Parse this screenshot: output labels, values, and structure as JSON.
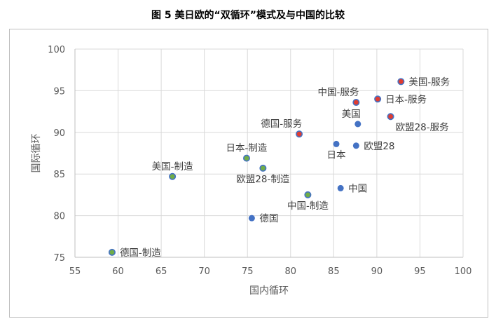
{
  "chart_data": {
    "type": "scatter",
    "title": "图 5 美日欧的“双循环”模式及与中国的比较",
    "xlabel": "国内循环",
    "ylabel": "国际循环",
    "xlim": [
      55,
      100
    ],
    "ylim": [
      75,
      100
    ],
    "xticks": [
      55,
      60,
      65,
      70,
      75,
      80,
      85,
      90,
      95,
      100
    ],
    "yticks": [
      75,
      80,
      85,
      90,
      95,
      100
    ],
    "grid": "both",
    "colors": {
      "total": "#4472c4",
      "service": "#e03c31",
      "manufacturing": "#70ad47",
      "grid": "#d9d9d9"
    },
    "points": [
      {
        "label": "美国-服务",
        "x": 92.8,
        "y": 96.1,
        "kind": "service",
        "anchor": "right"
      },
      {
        "label": "中国-服务",
        "x": 87.6,
        "y": 93.6,
        "kind": "service",
        "anchor": "above-left"
      },
      {
        "label": "日本-服务",
        "x": 90.1,
        "y": 94.0,
        "kind": "service",
        "anchor": "right"
      },
      {
        "label": "美国",
        "x": 87.8,
        "y": 91.0,
        "kind": "total",
        "anchor": "above-left"
      },
      {
        "label": "欧盟28-服务",
        "x": 91.6,
        "y": 91.9,
        "kind": "service",
        "anchor": "below-right"
      },
      {
        "label": "德国-服务",
        "x": 81.0,
        "y": 89.8,
        "kind": "service",
        "anchor": "above-left"
      },
      {
        "label": "日本",
        "x": 85.3,
        "y": 88.6,
        "kind": "total",
        "anchor": "below"
      },
      {
        "label": "欧盟28",
        "x": 87.6,
        "y": 88.4,
        "kind": "total",
        "anchor": "right"
      },
      {
        "label": "日本-制造",
        "x": 74.9,
        "y": 86.9,
        "kind": "manufacturing",
        "anchor": "above"
      },
      {
        "label": "欧盟28-制造",
        "x": 76.8,
        "y": 85.7,
        "kind": "manufacturing",
        "anchor": "below"
      },
      {
        "label": "美国-制造",
        "x": 66.3,
        "y": 84.7,
        "kind": "manufacturing",
        "anchor": "above"
      },
      {
        "label": "中国",
        "x": 85.8,
        "y": 83.3,
        "kind": "total",
        "anchor": "right"
      },
      {
        "label": "中国-制造",
        "x": 82.0,
        "y": 82.5,
        "kind": "manufacturing",
        "anchor": "below"
      },
      {
        "label": "德国",
        "x": 75.5,
        "y": 79.7,
        "kind": "total",
        "anchor": "right"
      },
      {
        "label": "德国-制造",
        "x": 59.3,
        "y": 75.6,
        "kind": "manufacturing",
        "anchor": "right"
      }
    ]
  }
}
